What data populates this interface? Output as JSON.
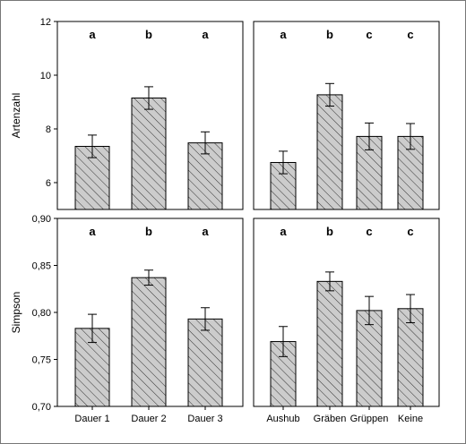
{
  "chart_data": [
    {
      "type": "bar",
      "id": "top-left",
      "ylabel": "Artenzahl",
      "ylim": [
        5,
        12
      ],
      "yticks": [
        "6",
        "8",
        "10",
        "12"
      ],
      "categories": [
        "",
        "",
        ""
      ],
      "values": [
        7.35,
        9.15,
        7.48
      ],
      "error": [
        0.42,
        0.42,
        0.41
      ],
      "letters": [
        "a",
        "b",
        "a"
      ]
    },
    {
      "type": "bar",
      "id": "top-right",
      "ylim": [
        5,
        12
      ],
      "categories": [
        "",
        "",
        "",
        ""
      ],
      "values": [
        6.75,
        9.27,
        7.72,
        7.72
      ],
      "error": [
        0.42,
        0.42,
        0.5,
        0.48
      ],
      "letters": [
        "a",
        "b",
        "c",
        "c"
      ]
    },
    {
      "type": "bar",
      "id": "bottom-left",
      "ylabel": "Simpson",
      "ylim": [
        0.7,
        0.9
      ],
      "yticks": [
        "0,70",
        "0,75",
        "0,80",
        "0,85",
        "0,90"
      ],
      "categories": [
        "Dauer 1",
        "Dauer 2",
        "Dauer 3"
      ],
      "values": [
        0.783,
        0.837,
        0.793
      ],
      "error": [
        0.015,
        0.008,
        0.012
      ],
      "letters": [
        "a",
        "b",
        "a"
      ]
    },
    {
      "type": "bar",
      "id": "bottom-right",
      "ylim": [
        0.7,
        0.9
      ],
      "categories": [
        "Aushub",
        "Gräben",
        "Grüppen",
        "Keine"
      ],
      "values": [
        0.769,
        0.833,
        0.802,
        0.804
      ],
      "error": [
        0.016,
        0.01,
        0.015,
        0.015
      ],
      "letters": [
        "a",
        "b",
        "c",
        "c"
      ]
    }
  ]
}
